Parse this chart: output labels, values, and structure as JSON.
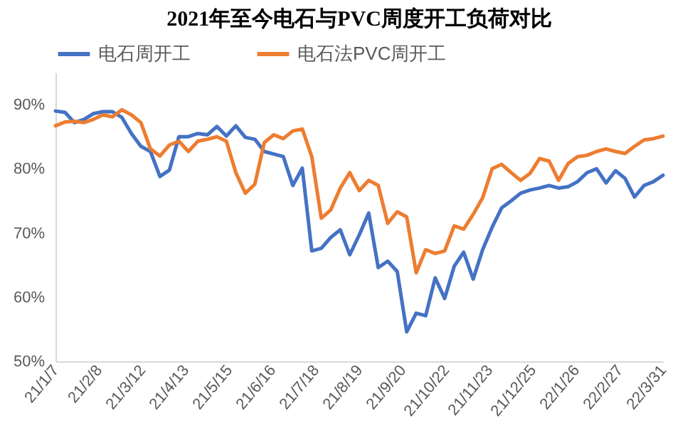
{
  "chart_data": {
    "type": "line",
    "title": "2021年至今电石与PVC周度开工负荷对比",
    "x": [
      "2021-01-07",
      "2021-01-14",
      "2021-01-21",
      "2021-01-28",
      "2021-02-04",
      "2021-02-11",
      "2021-02-18",
      "2021-02-25",
      "2021-03-04",
      "2021-03-11",
      "2021-03-18",
      "2021-03-25",
      "2021-04-01",
      "2021-04-08",
      "2021-04-15",
      "2021-04-22",
      "2021-04-29",
      "2021-05-06",
      "2021-05-13",
      "2021-05-20",
      "2021-05-27",
      "2021-06-03",
      "2021-06-10",
      "2021-06-17",
      "2021-06-24",
      "2021-07-01",
      "2021-07-08",
      "2021-07-15",
      "2021-07-22",
      "2021-07-29",
      "2021-08-05",
      "2021-08-12",
      "2021-08-19",
      "2021-08-26",
      "2021-09-02",
      "2021-09-09",
      "2021-09-16",
      "2021-09-23",
      "2021-09-30",
      "2021-10-07",
      "2021-10-14",
      "2021-10-21",
      "2021-10-28",
      "2021-11-04",
      "2021-11-11",
      "2021-11-18",
      "2021-11-25",
      "2021-12-02",
      "2021-12-09",
      "2021-12-16",
      "2021-12-23",
      "2021-12-30",
      "2022-01-06",
      "2022-01-13",
      "2022-01-20",
      "2022-01-27",
      "2022-02-03",
      "2022-02-10",
      "2022-02-17",
      "2022-02-24",
      "2022-03-03",
      "2022-03-10",
      "2022-03-17",
      "2022-03-24",
      "2022-03-31"
    ],
    "series": [
      {
        "name": "电石周开工",
        "color": "#4472c4",
        "values": [
          89.0,
          88.8,
          87.2,
          87.7,
          88.6,
          88.9,
          88.9,
          88.0,
          85.5,
          83.5,
          82.7,
          78.8,
          79.8,
          85.0,
          85.0,
          85.5,
          85.3,
          86.6,
          85.1,
          86.7,
          84.9,
          84.6,
          82.7,
          82.3,
          81.9,
          77.4,
          80.1,
          67.2,
          67.6,
          69.3,
          70.5,
          66.6,
          69.7,
          73.1,
          64.6,
          65.6,
          64.0,
          54.6,
          57.5,
          57.1,
          63.0,
          59.8,
          64.8,
          67.0,
          62.8,
          67.4,
          70.9,
          73.9,
          75.0,
          76.2,
          76.7,
          77.0,
          77.4,
          77.0,
          77.2,
          78.0,
          79.4,
          80.0,
          77.8,
          79.7,
          78.5,
          75.6,
          77.4,
          78.0,
          79.0
        ]
      },
      {
        "name": "电石法PVC周开工",
        "color": "#ed7d31",
        "values": [
          86.7,
          87.3,
          87.4,
          87.2,
          87.7,
          88.4,
          88.1,
          89.2,
          88.4,
          87.2,
          83.1,
          82.0,
          83.7,
          84.3,
          82.7,
          84.3,
          84.6,
          85.0,
          84.3,
          79.4,
          76.2,
          77.6,
          84.1,
          85.3,
          84.7,
          85.9,
          86.2,
          81.9,
          72.3,
          73.6,
          77.0,
          79.4,
          76.6,
          78.2,
          77.4,
          71.5,
          73.3,
          72.5,
          63.8,
          67.4,
          66.8,
          67.2,
          71.1,
          70.6,
          72.9,
          75.5,
          80.0,
          80.7,
          79.4,
          78.2,
          79.3,
          81.6,
          81.2,
          78.2,
          80.8,
          81.9,
          82.1,
          82.7,
          83.1,
          82.7,
          82.4,
          83.5,
          84.5,
          84.7,
          85.1
        ]
      }
    ],
    "xlim": [
      "2021-01-07",
      "2022-03-31"
    ],
    "xticks": [
      {
        "value": "2021-01-07",
        "label": "21/1/7"
      },
      {
        "value": "2021-02-08",
        "label": "21/2/8"
      },
      {
        "value": "2021-03-12",
        "label": "21/3/12"
      },
      {
        "value": "2021-04-13",
        "label": "21/4/13"
      },
      {
        "value": "2021-05-15",
        "label": "21/5/15"
      },
      {
        "value": "2021-06-16",
        "label": "21/6/16"
      },
      {
        "value": "2021-07-18",
        "label": "21/7/18"
      },
      {
        "value": "2021-08-19",
        "label": "21/8/19"
      },
      {
        "value": "2021-09-20",
        "label": "21/9/20"
      },
      {
        "value": "2021-10-22",
        "label": "21/10/22"
      },
      {
        "value": "2021-11-23",
        "label": "21/11/23"
      },
      {
        "value": "2021-12-25",
        "label": "21/12/25"
      },
      {
        "value": "2022-01-26",
        "label": "22/1/26"
      },
      {
        "value": "2022-02-27",
        "label": "22/2/27"
      },
      {
        "value": "2022-03-31",
        "label": "22/3/31"
      }
    ],
    "ylim": [
      50,
      95
    ],
    "yticks": [
      {
        "value": 50,
        "label": "50%"
      },
      {
        "value": 60,
        "label": "60%"
      },
      {
        "value": 70,
        "label": "70%"
      },
      {
        "value": 80,
        "label": "80%"
      },
      {
        "value": 90,
        "label": "90%"
      }
    ],
    "legend": "top"
  }
}
